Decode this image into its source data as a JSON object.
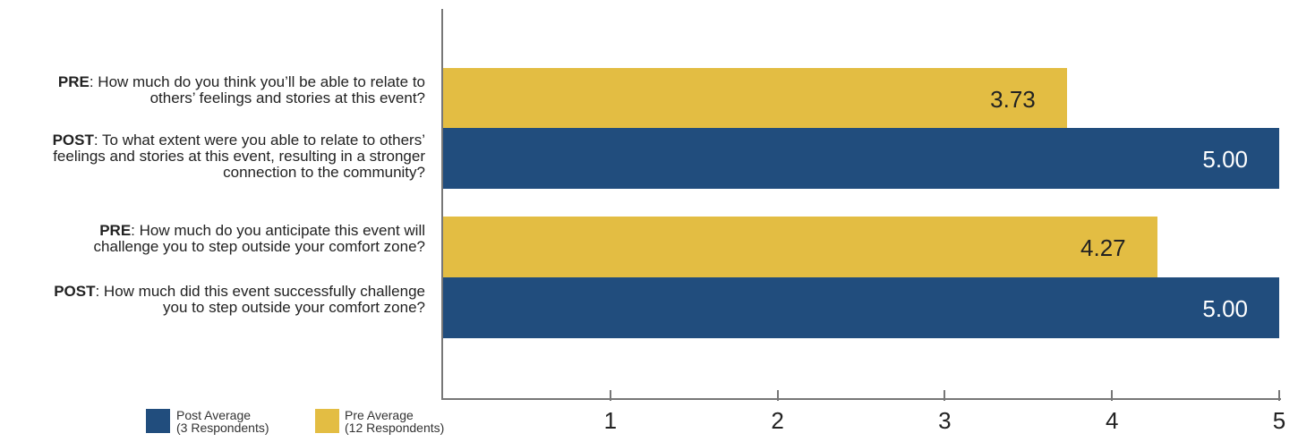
{
  "chart_data": {
    "type": "bar",
    "orientation": "horizontal",
    "xlim": [
      0,
      5
    ],
    "ticks": [
      1,
      2,
      3,
      4,
      5
    ],
    "bars": [
      {
        "prefix": "PRE",
        "text": ": How much do you think you’ll be able to relate to",
        "text2": "others’ feelings and stories at this event?",
        "text3": "",
        "value": 3.73,
        "value_label": "3.73",
        "series": "pre"
      },
      {
        "prefix": "POST",
        "text": ": To what extent were you able to relate to others’",
        "text2": "feelings and stories at this event, resulting in a stronger",
        "text3": "connection to the community?",
        "value": 5.0,
        "value_label": "5.00",
        "series": "post"
      },
      {
        "prefix": "PRE",
        "text": ": How much do you anticipate this event will",
        "text2": "challenge you to step outside your comfort zone?",
        "text3": "",
        "value": 4.27,
        "value_label": "4.27",
        "series": "pre"
      },
      {
        "prefix": "POST",
        "text": ": How much did this event successfully challenge",
        "text2": "you to step outside your comfort zone?",
        "text3": "",
        "value": 5.0,
        "value_label": "5.00",
        "series": "post"
      }
    ],
    "legend": [
      {
        "key": "post",
        "line1": "Post Average",
        "line2": "(3 Respondents)",
        "color": "#214d7d"
      },
      {
        "key": "pre",
        "line1": "Pre Average",
        "line2": "(12 Respondents)",
        "color": "#e3bd43"
      }
    ],
    "grid": false,
    "legend_position": "bottom-left"
  }
}
